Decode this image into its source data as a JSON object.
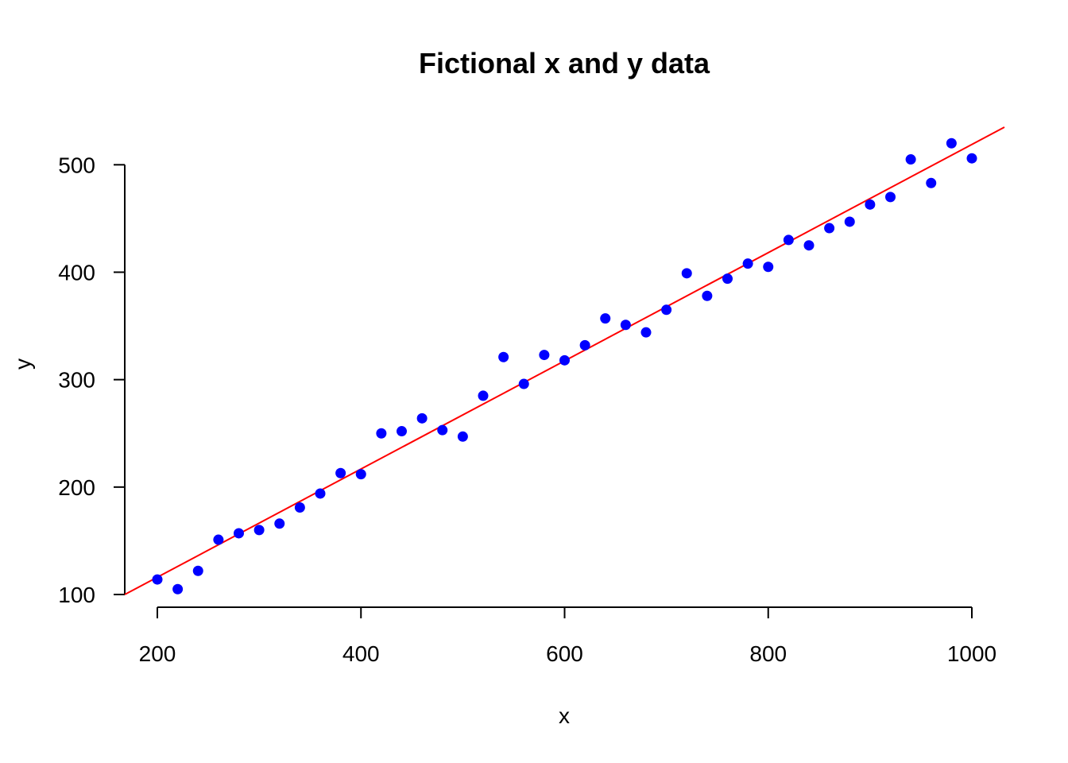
{
  "chart_data": {
    "type": "scatter",
    "title": "Fictional x and y data",
    "xlabel": "x",
    "ylabel": "y",
    "xlim": [
      168,
      1032
    ],
    "ylim": [
      100,
      535
    ],
    "x_ticks": [
      200,
      400,
      600,
      800,
      1000
    ],
    "y_ticks": [
      100,
      200,
      300,
      400,
      500
    ],
    "grid": false,
    "point_color": "#0000ff",
    "line_color": "#ff0000",
    "series": [
      {
        "x": [
          200,
          220,
          240,
          260,
          280,
          300,
          320,
          340,
          360,
          380,
          400,
          420,
          440,
          460,
          480,
          500,
          520,
          540,
          560,
          580,
          600,
          620,
          640,
          660,
          680,
          700,
          720,
          740,
          760,
          780,
          800,
          820,
          840,
          860,
          880,
          900,
          920,
          940,
          960,
          980,
          1000
        ],
        "y": [
          114,
          105,
          122,
          151,
          157,
          160,
          166,
          181,
          194,
          213,
          212,
          250,
          252,
          264,
          253,
          247,
          285,
          321,
          296,
          323,
          318,
          332,
          357,
          351,
          344,
          365,
          399,
          378,
          394,
          408,
          405,
          430,
          425,
          441,
          447,
          463,
          470,
          505,
          483,
          520,
          506
        ]
      }
    ],
    "fit_line": {
      "x": [
        168,
        1032
      ],
      "y": [
        100,
        535
      ]
    }
  }
}
